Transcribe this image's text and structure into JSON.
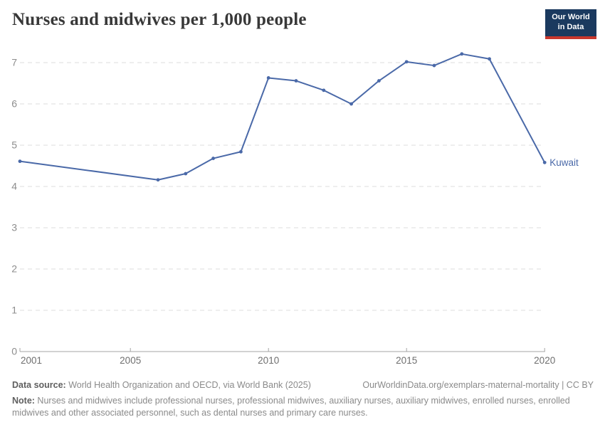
{
  "header": {
    "title": "Nurses and midwives per 1,000 people"
  },
  "logo": {
    "line1": "Our World",
    "line2": "in Data",
    "bg_color": "#1b3a5f",
    "accent_color": "#c8372d"
  },
  "chart_data": {
    "type": "line",
    "title": "Nurses and midwives per 1,000 people",
    "xlabel": "",
    "ylabel": "",
    "xlim": [
      2001,
      2020
    ],
    "ylim": [
      0,
      7
    ],
    "yticks": [
      0,
      1,
      2,
      3,
      4,
      5,
      6,
      7
    ],
    "xticks": [
      2001,
      2005,
      2010,
      2015,
      2020
    ],
    "grid": "horizontal-dashed",
    "legend_position": "end-of-line-label",
    "colors": {
      "line": "#4a69a8",
      "grid": "#dddddd",
      "axis": "#a5a5a5",
      "y_tick_label": "#8d8d8d",
      "x_tick_label": "#6f6f6f"
    },
    "series": [
      {
        "name": "Kuwait",
        "points": [
          {
            "x": 2001,
            "y": 4.61
          },
          {
            "x": 2006,
            "y": 4.16
          },
          {
            "x": 2007,
            "y": 4.31
          },
          {
            "x": 2008,
            "y": 4.68
          },
          {
            "x": 2009,
            "y": 4.84
          },
          {
            "x": 2010,
            "y": 6.63
          },
          {
            "x": 2011,
            "y": 6.56
          },
          {
            "x": 2012,
            "y": 6.33
          },
          {
            "x": 2013,
            "y": 6.0
          },
          {
            "x": 2014,
            "y": 6.56
          },
          {
            "x": 2015,
            "y": 7.02
          },
          {
            "x": 2016,
            "y": 6.93
          },
          {
            "x": 2017,
            "y": 7.21
          },
          {
            "x": 2018,
            "y": 7.09
          },
          {
            "x": 2020,
            "y": 4.58
          }
        ]
      }
    ]
  },
  "footer": {
    "source_label": "Data source:",
    "source_text": " World Health Organization and OECD, via World Bank (2025)",
    "attribution": "OurWorldinData.org/exemplars-maternal-mortality | CC BY",
    "note_label": "Note:",
    "note_text": " Nurses and midwives include professional nurses, professional midwives, auxiliary nurses, auxiliary midwives, enrolled nurses, enrolled midwives and other associated personnel, such as dental nurses and primary care nurses."
  }
}
